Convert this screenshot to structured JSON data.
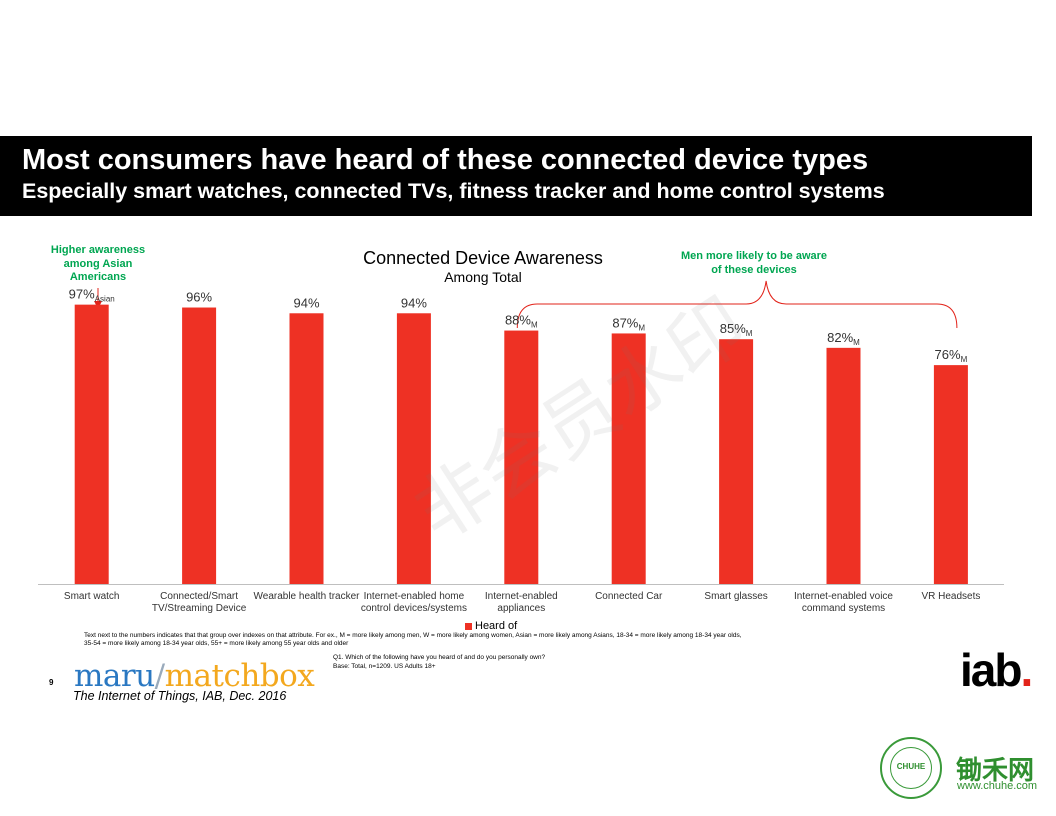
{
  "header": {
    "title": "Most consumers have heard of these connected device types",
    "subtitle": "Especially smart watches, connected TVs, fitness tracker and home control systems"
  },
  "callouts": {
    "asian_line1": "Higher awareness",
    "asian_line2": "among Asian",
    "asian_line3": "Americans",
    "men_line1": "Men more likely to be aware",
    "men_line2": "of these devices"
  },
  "chart_data": {
    "type": "bar",
    "title": "Connected Device Awareness",
    "subtitle": "Among Total",
    "categories": [
      [
        "Smart watch"
      ],
      [
        "Connected/Smart",
        "TV/Streaming Device"
      ],
      [
        "Wearable health tracker"
      ],
      [
        "Internet-enabled home",
        "control devices/systems"
      ],
      [
        "Internet-enabled",
        "appliances"
      ],
      [
        "Connected Car"
      ],
      [
        "Smart glasses"
      ],
      [
        "Internet-enabled voice",
        "command systems"
      ],
      [
        "VR Headsets"
      ]
    ],
    "series": [
      {
        "name": "Heard of",
        "values": [
          97,
          96,
          94,
          94,
          88,
          87,
          85,
          82,
          76
        ]
      }
    ],
    "data_labels": [
      "97%",
      "96%",
      "94%",
      "94%",
      "88%",
      "87%",
      "85%",
      "82%",
      "76%"
    ],
    "label_subscripts": [
      "Asian",
      "",
      "",
      "",
      "M",
      "M",
      "M",
      "M",
      "M"
    ],
    "ylim": [
      0,
      100
    ],
    "color": "#ee3124",
    "legend_position": "bottom"
  },
  "footnote": "Text next to the numbers indicates that that group over indexes on that attribute.  For ex., M = more likely among men, W = more likely among women, Asian = more likely among Asians, 18-34 = more likely among 18-34 year olds, 35-54 = more likely among 18-34 year olds, 55+ = more likely among 55 year olds and older",
  "question": "Q1.  Which of the following have you heard of and do you personally own?",
  "base": "Base: Total, n=1209.  US Adults 18+",
  "page_number": "9",
  "logos": {
    "maru_part1": "maru",
    "maru_slash": "/",
    "maru_part2": "matchbox",
    "iab": "iab",
    "iab_dot": ".",
    "chuhe_cn": "锄禾网",
    "chuhe_url": "www.chuhe.com",
    "chuhe_seal": "CHUHE"
  },
  "source": "The Internet of Things, IAB, Dec. 2016",
  "watermark": "非会员水印"
}
